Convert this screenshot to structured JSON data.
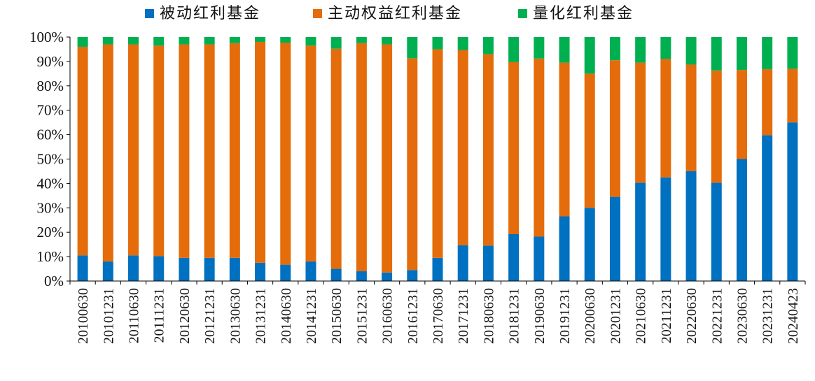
{
  "chart_data": {
    "type": "bar",
    "stacked": true,
    "percent": true,
    "title": "",
    "xlabel": "",
    "ylabel": "",
    "ylim": [
      0,
      100
    ],
    "yticks": [
      "0%",
      "10%",
      "20%",
      "30%",
      "40%",
      "50%",
      "60%",
      "70%",
      "80%",
      "90%",
      "100%"
    ],
    "legend_position": "top",
    "grid": false,
    "categories": [
      "20100630",
      "20101231",
      "20110630",
      "20111231",
      "20120630",
      "20121231",
      "20130630",
      "20131231",
      "20140630",
      "20141231",
      "20150630",
      "20151231",
      "20160630",
      "20161231",
      "20170630",
      "20171231",
      "20180630",
      "20181231",
      "20190630",
      "20191231",
      "20200630",
      "20201231",
      "20210630",
      "20211231",
      "20220630",
      "20221231",
      "20230630",
      "20231231",
      "20240423"
    ],
    "series": [
      {
        "name": "被动红利基金",
        "color": "#0070C0",
        "values": [
          10.5,
          8,
          10.5,
          10.2,
          9.5,
          9.5,
          9.5,
          7.5,
          6.7,
          8,
          5,
          4,
          3.5,
          4.5,
          9.5,
          14.7,
          14.5,
          19.2,
          18.2,
          26.5,
          30,
          34.5,
          40.3,
          42.5,
          45,
          40.3,
          50,
          59.8,
          65
        ]
      },
      {
        "name": "主动权益红利基金",
        "color": "#E46C0A",
        "values": [
          85.5,
          89,
          86.5,
          86.3,
          87.5,
          87.5,
          88,
          90.5,
          91,
          88.5,
          90.2,
          93.5,
          93.5,
          86.8,
          85.5,
          80,
          78.5,
          70.5,
          73,
          63,
          55,
          56,
          49.2,
          48.5,
          43.7,
          46,
          36.5,
          27,
          22
        ]
      },
      {
        "name": "量化红利基金",
        "color": "#00B050",
        "values": [
          4,
          3,
          3,
          3.5,
          3,
          3,
          2.5,
          2,
          2.3,
          3.5,
          4.8,
          2.5,
          3,
          8.7,
          5,
          5.3,
          7,
          10.3,
          8.8,
          10.5,
          15,
          9.5,
          10.5,
          9,
          11.3,
          13.7,
          13.5,
          13.2,
          13
        ]
      }
    ]
  }
}
